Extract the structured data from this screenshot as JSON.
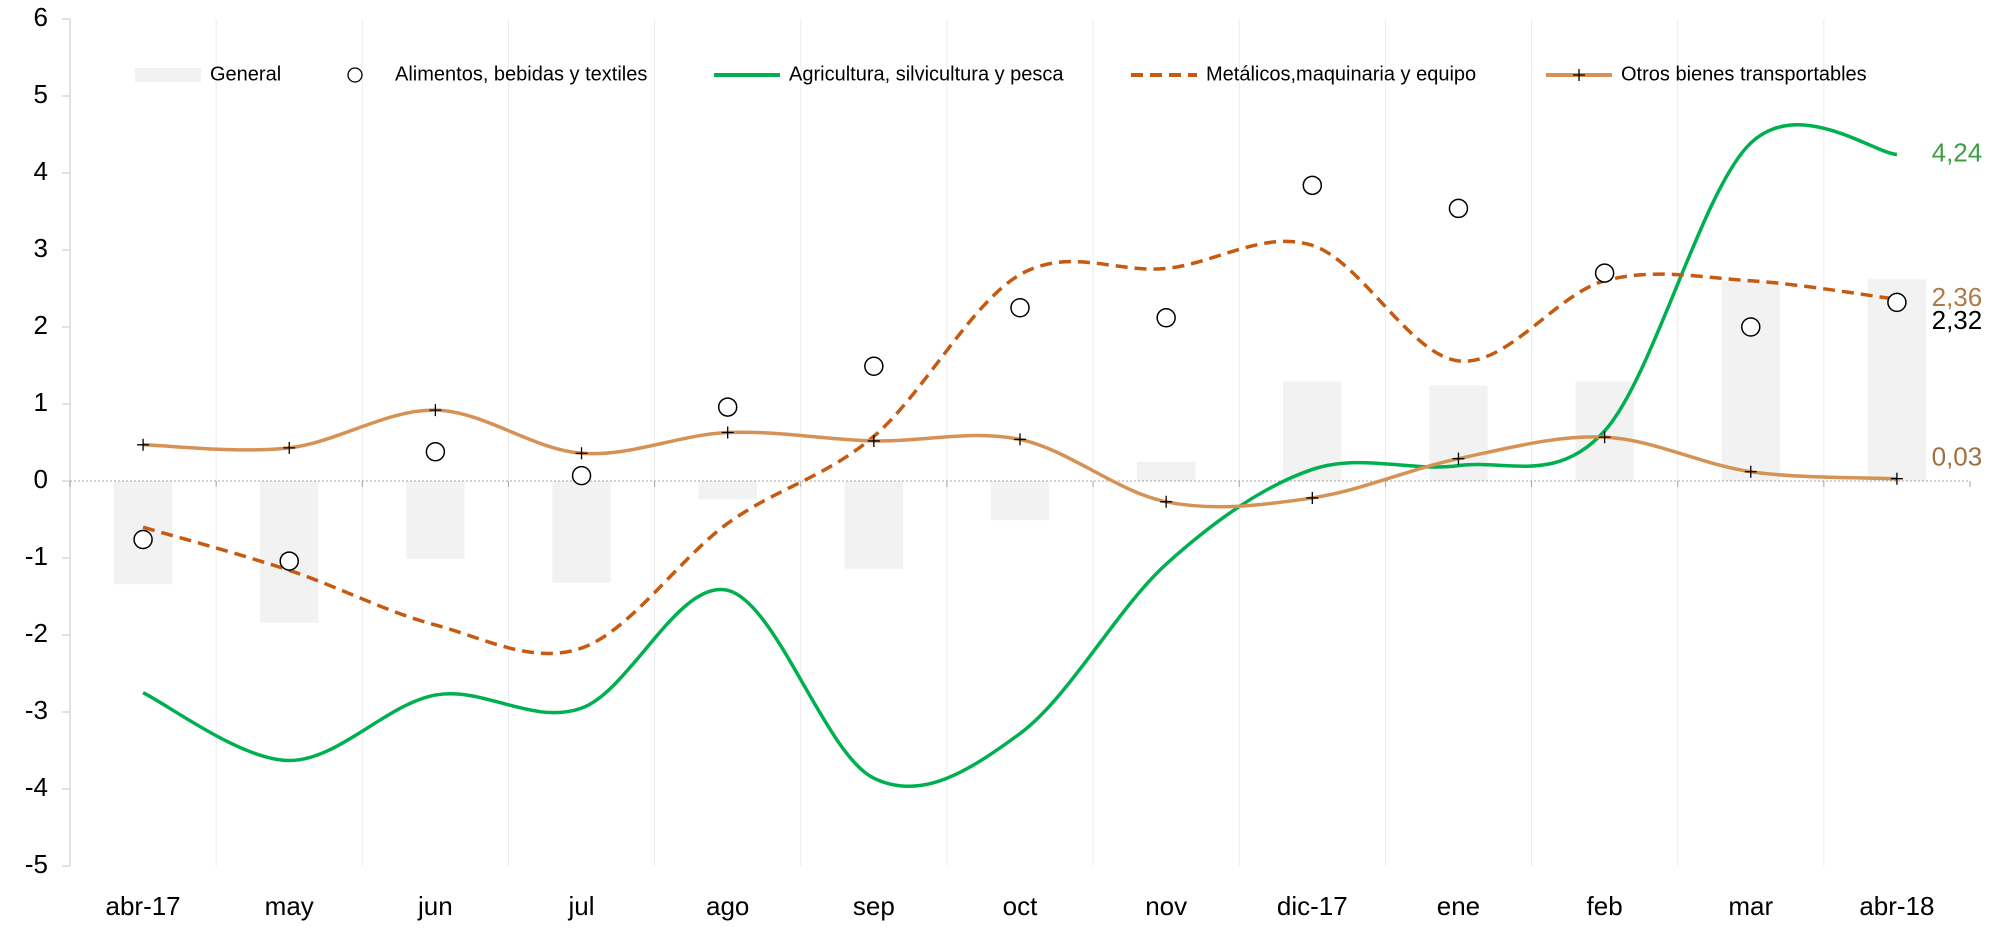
{
  "chart_data": {
    "type": "combo",
    "categories": [
      "abr-17",
      "may",
      "jun",
      "jul",
      "ago",
      "sep",
      "oct",
      "nov",
      "dic-17",
      "ene",
      "feb",
      "mar",
      "abr-18"
    ],
    "ylim": [
      -5,
      6
    ],
    "yticks": [
      -5,
      -4,
      -3,
      -2,
      -1,
      0,
      1,
      2,
      3,
      4,
      5,
      6
    ],
    "series": [
      {
        "name": "General",
        "kind": "bar",
        "color": "#f2f2f2",
        "values": [
          -1.34,
          -1.84,
          -1.01,
          -1.32,
          -0.24,
          -1.14,
          -0.51,
          0.25,
          1.29,
          1.24,
          1.29,
          2.6,
          2.62
        ]
      },
      {
        "name": "Alimentos, bebidas y textiles",
        "kind": "marker",
        "color": "#000000",
        "values": [
          -0.76,
          -1.04,
          0.38,
          0.07,
          0.96,
          1.49,
          2.25,
          2.12,
          3.84,
          3.54,
          2.7,
          2.0,
          2.32
        ],
        "value_labels": [
          null,
          null,
          null,
          null,
          null,
          null,
          null,
          null,
          null,
          null,
          null,
          null,
          "2,32"
        ]
      },
      {
        "name": "Agricultura, silvicultura y pesca",
        "kind": "line",
        "color": "#00b050",
        "values": [
          -2.75,
          -3.63,
          -2.78,
          -2.95,
          -1.42,
          -3.86,
          -3.28,
          -1.08,
          0.15,
          0.2,
          0.65,
          4.39,
          4.24
        ],
        "value_labels": [
          null,
          null,
          null,
          null,
          null,
          null,
          null,
          null,
          null,
          null,
          null,
          null,
          "4,24"
        ]
      },
      {
        "name": "Metálicos,maquinaria y equipo",
        "kind": "dashed",
        "color": "#c55a11",
        "values": [
          -0.6,
          -1.16,
          -1.87,
          -2.17,
          -0.55,
          0.58,
          2.68,
          2.76,
          3.06,
          1.56,
          2.6,
          2.6,
          2.36
        ],
        "value_labels": [
          null,
          null,
          null,
          null,
          null,
          null,
          null,
          null,
          null,
          null,
          null,
          null,
          "2,36"
        ]
      },
      {
        "name": "Otros bienes transportables",
        "kind": "cross-line",
        "color": "#d69255",
        "values": [
          0.47,
          0.43,
          0.92,
          0.36,
          0.63,
          0.52,
          0.54,
          -0.27,
          -0.22,
          0.29,
          0.57,
          0.12,
          0.03
        ],
        "value_labels": [
          null,
          null,
          null,
          null,
          null,
          null,
          null,
          null,
          null,
          null,
          null,
          null,
          "0,03"
        ]
      }
    ]
  }
}
